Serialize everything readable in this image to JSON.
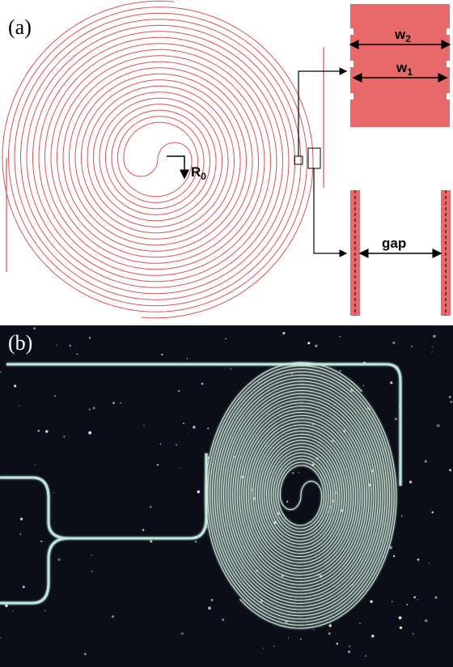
{
  "panel_a": {
    "label": "(a)",
    "w2": {
      "base": "w",
      "sub": "2"
    },
    "w1": {
      "base": "w",
      "sub": "1"
    },
    "r0": {
      "base": "R",
      "sub": "0"
    },
    "gap": "gap"
  },
  "panel_b": {
    "label": "(b)"
  }
}
